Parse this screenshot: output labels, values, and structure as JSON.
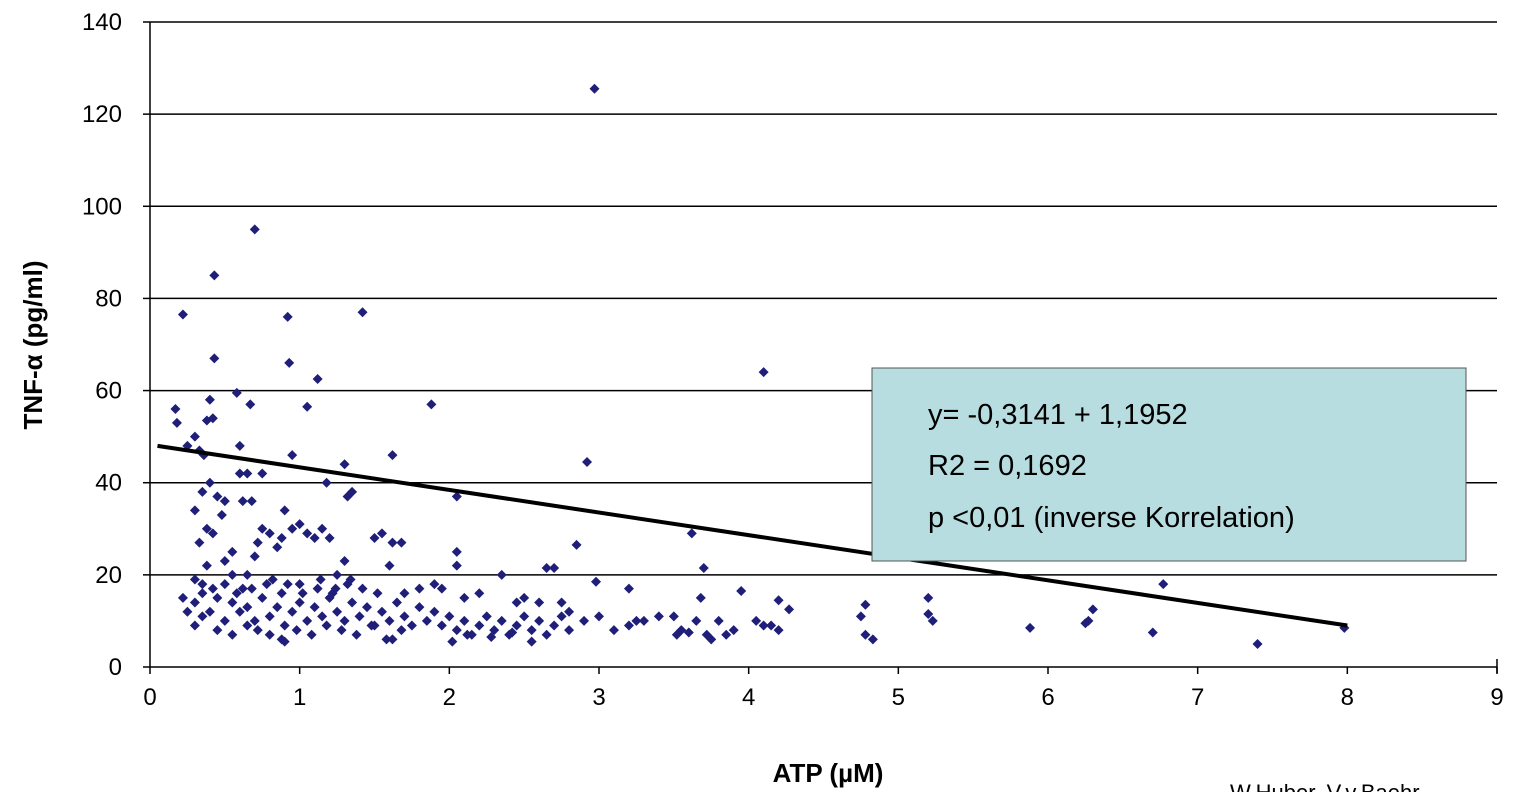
{
  "chart_data": {
    "type": "scatter",
    "title": "",
    "xlabel": "ATP (µM)",
    "ylabel": "TNF-α (pg/ml)",
    "xlim": [
      0,
      9
    ],
    "ylim": [
      0,
      140
    ],
    "xticks": [
      "0",
      "1",
      "2",
      "3",
      "4",
      "5",
      "6",
      "7",
      "8",
      "9"
    ],
    "yticks": [
      "0",
      "20",
      "40",
      "60",
      "80",
      "100",
      "120",
      "140"
    ],
    "grid": "horizontal",
    "marker_color": "#1f1f7a",
    "trendline": {
      "x": [
        0.05,
        8.0
      ],
      "y": [
        48,
        9
      ],
      "color": "#000000"
    },
    "annotation": {
      "lines": [
        "y= -0,3141 + 1,1952",
        "R2 = 0,1692",
        "p <0,01 (inverse Korrelation)"
      ],
      "background": "#b7dde0"
    },
    "credit": "W.Huber, V.v.Baehr",
    "points": [
      [
        0.17,
        56
      ],
      [
        0.18,
        53
      ],
      [
        0.22,
        76.5
      ],
      [
        0.25,
        48
      ],
      [
        0.3,
        50
      ],
      [
        0.33,
        47
      ],
      [
        0.36,
        46
      ],
      [
        0.38,
        53.5
      ],
      [
        0.4,
        58
      ],
      [
        0.42,
        54
      ],
      [
        0.43,
        85
      ],
      [
        0.43,
        67
      ],
      [
        0.58,
        59.5
      ],
      [
        0.6,
        48
      ],
      [
        0.7,
        95
      ],
      [
        0.67,
        57
      ],
      [
        0.92,
        76
      ],
      [
        0.93,
        66
      ],
      [
        1.12,
        62.5
      ],
      [
        1.05,
        56.5
      ],
      [
        1.42,
        77
      ],
      [
        1.88,
        57
      ],
      [
        4.1,
        64
      ],
      [
        2.97,
        125.5
      ],
      [
        2.92,
        44.5
      ],
      [
        2.05,
        37
      ],
      [
        0.95,
        46
      ],
      [
        1.3,
        44
      ],
      [
        1.18,
        40
      ],
      [
        1.62,
        46
      ],
      [
        3.62,
        29
      ],
      [
        3.7,
        21.5
      ],
      [
        2.85,
        26.5
      ],
      [
        2.98,
        18.5
      ],
      [
        3.2,
        17
      ],
      [
        3.95,
        16.5
      ],
      [
        4.2,
        14.5
      ],
      [
        4.27,
        12.5
      ],
      [
        4.78,
        13.5
      ],
      [
        4.75,
        11
      ],
      [
        4.78,
        7
      ],
      [
        4.83,
        6
      ],
      [
        5.2,
        15
      ],
      [
        5.2,
        11.5
      ],
      [
        5.23,
        10
      ],
      [
        5.88,
        8.5
      ],
      [
        6.25,
        9.5
      ],
      [
        6.27,
        10
      ],
      [
        6.3,
        12.5
      ],
      [
        6.7,
        7.5
      ],
      [
        6.77,
        18
      ],
      [
        7.4,
        5
      ],
      [
        7.98,
        8.5
      ],
      [
        0.35,
        38
      ],
      [
        0.4,
        40
      ],
      [
        0.45,
        37
      ],
      [
        0.5,
        36
      ],
      [
        0.3,
        34
      ],
      [
        0.38,
        30
      ],
      [
        0.33,
        27
      ],
      [
        0.38,
        22
      ],
      [
        0.3,
        19
      ],
      [
        0.35,
        18
      ],
      [
        0.5,
        23
      ],
      [
        0.55,
        20
      ],
      [
        0.65,
        20
      ],
      [
        0.7,
        24
      ],
      [
        0.72,
        27
      ],
      [
        0.75,
        30
      ],
      [
        0.8,
        29
      ],
      [
        0.85,
        26
      ],
      [
        0.88,
        28
      ],
      [
        0.95,
        30
      ],
      [
        1.0,
        31
      ],
      [
        1.05,
        29
      ],
      [
        1.1,
        28
      ],
      [
        1.15,
        30
      ],
      [
        1.2,
        28
      ],
      [
        1.25,
        20
      ],
      [
        1.3,
        23
      ],
      [
        1.35,
        38
      ],
      [
        1.32,
        37
      ],
      [
        1.5,
        28
      ],
      [
        1.55,
        29
      ],
      [
        1.62,
        27
      ],
      [
        1.68,
        27
      ],
      [
        1.6,
        22
      ],
      [
        0.75,
        42
      ],
      [
        0.6,
        42
      ],
      [
        0.65,
        42
      ],
      [
        0.62,
        36
      ],
      [
        0.68,
        36
      ],
      [
        0.48,
        33
      ],
      [
        0.42,
        29
      ],
      [
        0.55,
        25
      ],
      [
        0.9,
        34
      ],
      [
        1.7,
        16
      ],
      [
        1.8,
        17
      ],
      [
        1.9,
        18
      ],
      [
        1.95,
        17
      ],
      [
        2.05,
        22
      ],
      [
        2.05,
        25
      ],
      [
        2.1,
        15
      ],
      [
        2.2,
        16
      ],
      [
        2.35,
        20
      ],
      [
        2.5,
        15
      ],
      [
        2.45,
        14
      ],
      [
        2.6,
        14
      ],
      [
        2.65,
        21.5
      ],
      [
        2.7,
        21.5
      ],
      [
        2.75,
        14
      ],
      [
        2.8,
        12
      ],
      [
        2.9,
        10
      ],
      [
        3.0,
        11
      ],
      [
        3.1,
        8
      ],
      [
        3.2,
        9
      ],
      [
        3.25,
        10
      ],
      [
        3.3,
        10
      ],
      [
        3.4,
        11
      ],
      [
        3.5,
        11
      ],
      [
        3.55,
        8
      ],
      [
        3.65,
        10
      ],
      [
        3.68,
        15
      ],
      [
        3.72,
        7
      ],
      [
        3.75,
        6
      ],
      [
        3.8,
        10
      ],
      [
        3.85,
        7
      ],
      [
        3.9,
        8
      ],
      [
        4.05,
        10
      ],
      [
        4.1,
        9
      ],
      [
        4.15,
        9
      ],
      [
        4.2,
        8
      ],
      [
        0.22,
        15
      ],
      [
        0.25,
        12
      ],
      [
        0.3,
        14
      ],
      [
        0.35,
        11
      ],
      [
        0.4,
        12
      ],
      [
        0.45,
        15
      ],
      [
        0.5,
        10
      ],
      [
        0.55,
        14
      ],
      [
        0.6,
        12
      ],
      [
        0.65,
        13
      ],
      [
        0.7,
        10
      ],
      [
        0.75,
        15
      ],
      [
        0.8,
        11
      ],
      [
        0.85,
        13
      ],
      [
        0.9,
        9
      ],
      [
        0.95,
        12
      ],
      [
        1.0,
        14
      ],
      [
        1.05,
        10
      ],
      [
        1.1,
        13
      ],
      [
        1.15,
        11
      ],
      [
        1.2,
        15
      ],
      [
        1.25,
        12
      ],
      [
        1.3,
        10
      ],
      [
        1.35,
        14
      ],
      [
        1.4,
        11
      ],
      [
        1.45,
        13
      ],
      [
        1.5,
        9
      ],
      [
        1.55,
        12
      ],
      [
        1.6,
        10
      ],
      [
        1.65,
        14
      ],
      [
        1.7,
        11
      ],
      [
        1.75,
        9
      ],
      [
        1.8,
        13
      ],
      [
        1.85,
        10
      ],
      [
        1.9,
        12
      ],
      [
        1.95,
        9
      ],
      [
        2.0,
        11
      ],
      [
        2.05,
        8
      ],
      [
        2.1,
        10
      ],
      [
        2.15,
        7
      ],
      [
        2.2,
        9
      ],
      [
        2.25,
        11
      ],
      [
        2.3,
        8
      ],
      [
        2.35,
        10
      ],
      [
        2.4,
        7
      ],
      [
        2.45,
        9
      ],
      [
        2.5,
        11
      ],
      [
        2.55,
        8
      ],
      [
        2.6,
        10
      ],
      [
        2.65,
        7
      ],
      [
        2.7,
        9
      ],
      [
        2.75,
        11
      ],
      [
        2.8,
        8
      ],
      [
        0.3,
        9
      ],
      [
        0.45,
        8
      ],
      [
        0.55,
        7
      ],
      [
        0.65,
        9
      ],
      [
        0.72,
        8
      ],
      [
        0.8,
        7
      ],
      [
        0.88,
        6
      ],
      [
        0.98,
        8
      ],
      [
        1.08,
        7
      ],
      [
        1.18,
        9
      ],
      [
        1.28,
        8
      ],
      [
        1.38,
        7
      ],
      [
        1.48,
        9
      ],
      [
        1.58,
        6
      ],
      [
        1.68,
        8
      ],
      [
        0.5,
        18
      ],
      [
        0.62,
        17
      ],
      [
        0.78,
        18
      ],
      [
        0.88,
        16
      ],
      [
        1.0,
        18
      ],
      [
        1.12,
        17
      ],
      [
        1.22,
        16
      ],
      [
        1.32,
        18
      ],
      [
        1.42,
        17
      ],
      [
        1.52,
        16
      ],
      [
        0.35,
        16
      ],
      [
        0.42,
        17
      ],
      [
        0.58,
        16
      ],
      [
        0.68,
        17
      ],
      [
        0.82,
        19
      ],
      [
        0.92,
        18
      ],
      [
        1.02,
        16
      ],
      [
        1.14,
        19
      ],
      [
        1.24,
        17
      ],
      [
        1.34,
        19
      ],
      [
        2.02,
        5.5
      ],
      [
        2.55,
        5.5
      ],
      [
        0.9,
        5.5
      ],
      [
        1.62,
        6
      ],
      [
        2.12,
        7
      ],
      [
        2.28,
        6.5
      ],
      [
        2.42,
        7.5
      ],
      [
        3.6,
        7.5
      ],
      [
        3.52,
        7
      ]
    ]
  }
}
